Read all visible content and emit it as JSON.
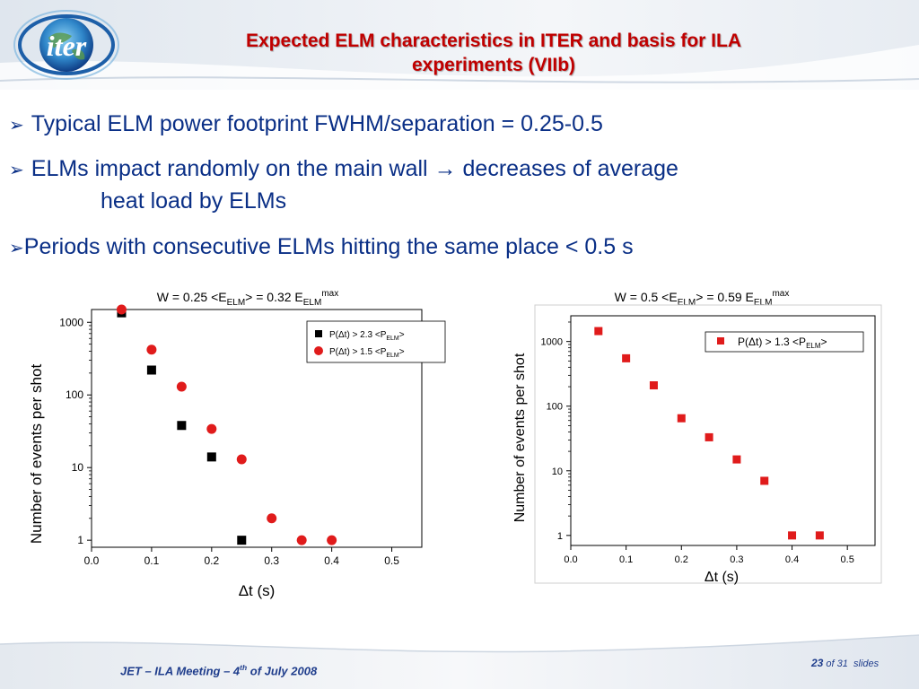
{
  "header": {
    "logo_text": "iter",
    "title_line1": "Expected ELM characteristics in ITER and basis for ILA",
    "title_line2": "experiments (VIIb)"
  },
  "bullets": [
    {
      "text": "Typical ELM power footprint FWHM/separation = 0.25-0.5"
    },
    {
      "text_before": "ELMs impact randomly on the main wall",
      "arrow": "→",
      "text_after": "decreases of average",
      "text_cont": "heat load by ELMs"
    },
    {
      "text": "Periods with consecutive ELMs hitting the same place < 0.5 s"
    }
  ],
  "bullet_marker": "➢",
  "colors": {
    "title": "#c00000",
    "bullet_text": "#0a2f86",
    "red_marker": "#e01b1b",
    "black_marker": "#000000",
    "footer": "#1f3d8c"
  },
  "chart_data": [
    {
      "type": "scatter",
      "title": {
        "pre": "W = 0.25 <E",
        "sub1": "ELM",
        "mid": "> = 0.32 E",
        "sub2": "ELM",
        "sup": "max"
      },
      "xlabel": "Δt (s)",
      "ylabel": "Number of events per shot",
      "xlim": [
        0.0,
        0.55
      ],
      "ylim": [
        0.8,
        1500
      ],
      "log_y": true,
      "x_ticks": [
        "0.0",
        "0.1",
        "0.2",
        "0.3",
        "0.4",
        "0.5"
      ],
      "y_ticks": [
        "1",
        "10",
        "100",
        "1000"
      ],
      "legend_position": "top-right",
      "series": [
        {
          "name": {
            "pre": "P(Δt) > 2.3 <P",
            "sub": "ELM",
            "post": ">"
          },
          "marker": "square",
          "color": "#000000",
          "x": [
            0.05,
            0.1,
            0.15,
            0.2,
            0.25
          ],
          "y": [
            1350,
            220,
            38,
            14,
            1
          ]
        },
        {
          "name": {
            "pre": "P(Δt) > 1.5 <P",
            "sub": "ELM",
            "post": ">"
          },
          "marker": "circle",
          "color": "#e01b1b",
          "x": [
            0.05,
            0.1,
            0.15,
            0.2,
            0.25,
            0.3,
            0.35,
            0.4
          ],
          "y": [
            1500,
            420,
            130,
            34,
            13,
            2,
            1,
            1
          ]
        }
      ]
    },
    {
      "type": "scatter",
      "title": {
        "pre": "W = 0.5 <E",
        "sub1": "ELM",
        "mid": "> = 0.59 E",
        "sub2": "ELM",
        "sup": "max"
      },
      "xlabel": "Δt (s)",
      "ylabel": "Number of events per shot",
      "xlim": [
        0.0,
        0.55
      ],
      "ylim": [
        0.7,
        2500
      ],
      "log_y": true,
      "x_ticks": [
        "0.0",
        "0.1",
        "0.2",
        "0.3",
        "0.4",
        "0.5"
      ],
      "y_ticks": [
        "1",
        "10",
        "100",
        "1000"
      ],
      "legend_position": "top-right",
      "series": [
        {
          "name": {
            "pre": "P(Δt) > 1.3 <P",
            "sub": "ELM",
            "post": ">"
          },
          "marker": "square",
          "color": "#e01b1b",
          "x": [
            0.05,
            0.1,
            0.15,
            0.2,
            0.25,
            0.3,
            0.35,
            0.4,
            0.45
          ],
          "y": [
            1450,
            550,
            210,
            65,
            33,
            15,
            7,
            1,
            1
          ]
        }
      ]
    }
  ],
  "footer": {
    "meeting_pre": "JET – ILA Meeting – 4",
    "meeting_sup": "th",
    "meeting_post": " of July 2008",
    "slide_num": "23",
    "slide_of": " of 31",
    "slide_word": "  slides"
  }
}
